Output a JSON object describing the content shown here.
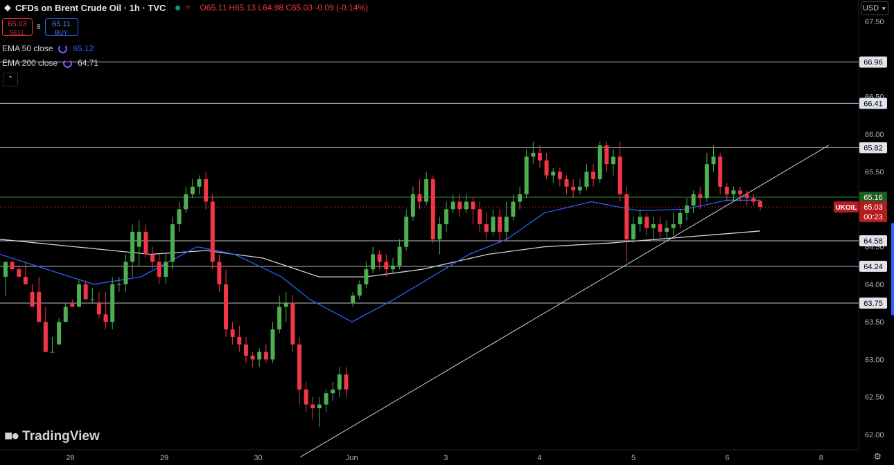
{
  "header": {
    "title": "CFDs on Brent Crude Oil · 1h · TVC",
    "ohlc": "O65.11 H65.13 L64.98 C65.03 -0.09 (-0.14%)"
  },
  "trade": {
    "sell_price": "65.03",
    "sell_label": "SELL",
    "spread": "8",
    "buy_price": "65.11",
    "buy_label": "BUY"
  },
  "indicators": [
    {
      "label": "EMA 50 close",
      "value": "65.12",
      "color": "#2962ff"
    },
    {
      "label": "EMA 200 close",
      "value": "64.71",
      "color": "#d1d4dc"
    }
  ],
  "currency": "USD",
  "brand": "TradingView",
  "symbol_tag": {
    "symbol": "UKOIL",
    "price": "65.03",
    "countdown": "00:23"
  },
  "colors": {
    "up": "#4caf50",
    "down": "#f23645",
    "ema50": "#2962ff",
    "ema200": "#d1d4dc",
    "level_green": "#4caf50"
  },
  "chart_data": {
    "type": "candlestick",
    "ylim": [
      61.9,
      67.6
    ],
    "y_ticks": [
      "62.00",
      "62.50",
      "63.00",
      "63.50",
      "64.00",
      "64.50",
      "65.00",
      "65.50",
      "66.00",
      "66.50",
      "67.00",
      "67.50"
    ],
    "x_ticks": [
      {
        "label": "28",
        "pos": 0.75
      },
      {
        "label": "29",
        "pos": 1.75
      },
      {
        "label": "30",
        "pos": 2.75
      },
      {
        "label": "Jun",
        "pos": 3.75
      },
      {
        "label": "3",
        "pos": 4.75
      },
      {
        "label": "4",
        "pos": 5.75
      },
      {
        "label": "5",
        "pos": 6.75
      },
      {
        "label": "6",
        "pos": 7.75
      },
      {
        "label": "8",
        "pos": 8.75
      }
    ],
    "x_range": [
      0,
      9.15
    ],
    "horizontal_levels": [
      {
        "value": 66.96,
        "label": "66.96",
        "color": "#d1d4dc"
      },
      {
        "value": 66.41,
        "label": "66.41",
        "color": "#d1d4dc"
      },
      {
        "value": 65.82,
        "label": "65.82",
        "color": "#d1d4dc"
      },
      {
        "value": 65.16,
        "label": "65.16",
        "color": "#4caf50"
      },
      {
        "value": 64.58,
        "label": "64.58",
        "color": "#d1d4dc"
      },
      {
        "value": 64.24,
        "label": "64.24",
        "color": "#d1d4dc"
      },
      {
        "value": 63.75,
        "label": "63.75",
        "color": "#d1d4dc"
      }
    ],
    "trendline": [
      [
        3.2,
        61.7
      ],
      [
        8.83,
        65.85
      ]
    ],
    "ema50_anchors": [
      [
        0,
        64.4
      ],
      [
        0.5,
        64.2
      ],
      [
        1.0,
        64.0
      ],
      [
        1.5,
        64.1
      ],
      [
        2.1,
        64.5
      ],
      [
        2.5,
        64.4
      ],
      [
        3.0,
        64.1
      ],
      [
        3.3,
        63.8
      ],
      [
        3.75,
        63.5
      ],
      [
        4.2,
        63.8
      ],
      [
        4.6,
        64.1
      ],
      [
        5.0,
        64.4
      ],
      [
        5.4,
        64.6
      ],
      [
        5.8,
        64.95
      ],
      [
        6.3,
        65.1
      ],
      [
        6.8,
        64.98
      ],
      [
        7.3,
        65.0
      ],
      [
        7.75,
        65.12
      ],
      [
        8.1,
        65.12
      ]
    ],
    "ema200_anchors": [
      [
        0,
        64.6
      ],
      [
        0.8,
        64.5
      ],
      [
        1.6,
        64.4
      ],
      [
        2.2,
        64.45
      ],
      [
        2.8,
        64.35
      ],
      [
        3.4,
        64.1
      ],
      [
        3.9,
        64.1
      ],
      [
        4.5,
        64.2
      ],
      [
        5.2,
        64.4
      ],
      [
        5.8,
        64.5
      ],
      [
        6.5,
        64.55
      ],
      [
        7.0,
        64.6
      ],
      [
        7.6,
        64.66
      ],
      [
        8.1,
        64.71
      ]
    ],
    "candles": [
      [
        64.1,
        64.3,
        63.95,
        63.85
      ],
      [
        64.3,
        64.2,
        64.15,
        64.2
      ],
      [
        64.2,
        64.1,
        64.25,
        64.25
      ],
      [
        64.1,
        64.0,
        64.3,
        64.0
      ],
      [
        63.9,
        63.7,
        64.0,
        63.95
      ],
      [
        63.9,
        63.5,
        64.1,
        63.95
      ],
      [
        63.5,
        63.1,
        63.7,
        63.1
      ],
      [
        63.1,
        63.1,
        63.3,
        63.3
      ],
      [
        63.2,
        63.5,
        63.55,
        63.3
      ],
      [
        63.5,
        63.7,
        63.75,
        63.65
      ],
      [
        63.75,
        63.7,
        63.8,
        63.7
      ],
      [
        63.7,
        64.0,
        64.05,
        63.85
      ],
      [
        64.0,
        63.8,
        64.05,
        63.8
      ],
      [
        63.8,
        63.8,
        63.95,
        63.75
      ],
      [
        63.75,
        63.6,
        63.9,
        63.55
      ],
      [
        63.6,
        63.5,
        63.9,
        63.4
      ],
      [
        63.5,
        64.0,
        64.1,
        63.4
      ],
      [
        64.0,
        64.0,
        64.1,
        63.9
      ],
      [
        64.0,
        64.3,
        64.4,
        63.9
      ],
      [
        64.3,
        64.7,
        64.8,
        64.1
      ],
      [
        64.5,
        64.7,
        64.85,
        64.25
      ],
      [
        64.7,
        64.4,
        64.8,
        64.35
      ],
      [
        64.4,
        64.3,
        64.5,
        64.2
      ],
      [
        64.3,
        64.1,
        64.4,
        64.0
      ],
      [
        64.1,
        64.3,
        64.4,
        64.0
      ],
      [
        64.3,
        64.8,
        64.9,
        64.2
      ],
      [
        64.8,
        65.0,
        65.1,
        64.7
      ],
      [
        65.0,
        65.2,
        65.3,
        64.95
      ],
      [
        65.2,
        65.3,
        65.4,
        65.15
      ],
      [
        65.3,
        65.4,
        65.45,
        65.2
      ],
      [
        65.4,
        65.1,
        65.5,
        65.0
      ],
      [
        65.1,
        64.3,
        65.2,
        64.2
      ],
      [
        64.3,
        64.0,
        64.4,
        63.9
      ],
      [
        64.0,
        63.4,
        64.2,
        63.3
      ],
      [
        63.4,
        63.3,
        63.5,
        63.2
      ],
      [
        63.3,
        63.2,
        63.45,
        63.1
      ],
      [
        63.2,
        63.05,
        63.3,
        62.95
      ],
      [
        63.05,
        63.0,
        63.1,
        62.9
      ],
      [
        63.0,
        63.1,
        63.15,
        62.9
      ],
      [
        63.1,
        63.0,
        63.2,
        62.95
      ],
      [
        63.0,
        63.4,
        63.5,
        62.95
      ],
      [
        63.4,
        63.7,
        63.85,
        63.35
      ],
      [
        63.7,
        63.75,
        63.9,
        63.5
      ],
      [
        63.75,
        63.2,
        63.85,
        63.1
      ],
      [
        63.2,
        62.6,
        63.3,
        62.4
      ],
      [
        62.6,
        62.4,
        62.7,
        62.3
      ],
      [
        62.4,
        62.35,
        62.5,
        62.2
      ],
      [
        62.35,
        62.4,
        62.5,
        62.1
      ],
      [
        62.4,
        62.55,
        62.6,
        62.3
      ],
      [
        62.55,
        62.6,
        62.7,
        62.45
      ],
      [
        62.6,
        62.8,
        62.9,
        62.5
      ],
      [
        62.8,
        62.6,
        62.9,
        62.5
      ],
      [
        63.75,
        63.85,
        63.9,
        63.7
      ],
      [
        63.85,
        64.0,
        64.05,
        63.8
      ],
      [
        64.0,
        64.2,
        64.3,
        63.95
      ],
      [
        64.2,
        64.4,
        64.5,
        64.15
      ],
      [
        64.4,
        64.3,
        64.45,
        64.2
      ],
      [
        64.3,
        64.2,
        64.4,
        64.1
      ],
      [
        64.2,
        64.25,
        64.35,
        64.15
      ],
      [
        64.25,
        64.5,
        64.6,
        64.2
      ],
      [
        64.5,
        64.9,
        65.0,
        64.45
      ],
      [
        64.9,
        65.2,
        65.3,
        64.85
      ],
      [
        65.2,
        65.1,
        65.4,
        65.0
      ],
      [
        65.1,
        65.4,
        65.5,
        65.05
      ],
      [
        65.4,
        64.6,
        65.45,
        64.55
      ],
      [
        64.6,
        64.8,
        64.9,
        64.4
      ],
      [
        64.8,
        65.0,
        65.1,
        64.7
      ],
      [
        65.0,
        65.1,
        65.2,
        64.95
      ],
      [
        65.1,
        65.0,
        65.2,
        64.9
      ],
      [
        65.0,
        65.1,
        65.2,
        64.95
      ],
      [
        65.1,
        65.0,
        65.15,
        64.8
      ],
      [
        65.0,
        64.8,
        65.1,
        64.7
      ],
      [
        64.8,
        64.7,
        64.95,
        64.6
      ],
      [
        64.7,
        64.9,
        65.0,
        64.65
      ],
      [
        64.9,
        64.7,
        65.0,
        64.55
      ],
      [
        64.7,
        64.9,
        65.1,
        64.6
      ],
      [
        64.9,
        65.1,
        65.2,
        64.85
      ],
      [
        65.1,
        65.2,
        65.3,
        65.0
      ],
      [
        65.2,
        65.7,
        65.8,
        65.15
      ],
      [
        65.7,
        65.75,
        65.9,
        65.6
      ],
      [
        65.75,
        65.65,
        65.85,
        65.55
      ],
      [
        65.65,
        65.45,
        65.75,
        65.4
      ],
      [
        65.45,
        65.5,
        65.55,
        65.35
      ],
      [
        65.5,
        65.4,
        65.55,
        65.3
      ],
      [
        65.4,
        65.3,
        65.45,
        65.2
      ],
      [
        65.3,
        65.25,
        65.4,
        65.15
      ],
      [
        65.25,
        65.3,
        65.4,
        65.2
      ],
      [
        65.3,
        65.5,
        65.6,
        65.25
      ],
      [
        65.5,
        65.4,
        65.6,
        65.3
      ],
      [
        65.4,
        65.85,
        65.9,
        65.35
      ],
      [
        65.85,
        65.6,
        65.9,
        65.5
      ],
      [
        65.6,
        65.7,
        65.8,
        65.45
      ],
      [
        65.7,
        65.2,
        65.9,
        65.1
      ],
      [
        65.2,
        64.6,
        65.3,
        64.3
      ],
      [
        64.6,
        64.8,
        64.9,
        64.55
      ],
      [
        64.8,
        64.9,
        65.0,
        64.7
      ],
      [
        64.9,
        64.75,
        64.95,
        64.65
      ],
      [
        64.75,
        64.8,
        64.9,
        64.6
      ],
      [
        64.8,
        64.7,
        64.9,
        64.6
      ],
      [
        64.7,
        64.75,
        64.85,
        64.6
      ],
      [
        64.75,
        64.8,
        64.95,
        64.65
      ],
      [
        64.8,
        64.95,
        65.0,
        64.75
      ],
      [
        64.95,
        65.05,
        65.15,
        64.85
      ],
      [
        65.05,
        65.2,
        65.25,
        64.95
      ],
      [
        65.2,
        65.15,
        65.3,
        65.0
      ],
      [
        65.15,
        65.6,
        65.75,
        65.1
      ],
      [
        65.6,
        65.7,
        65.85,
        65.5
      ],
      [
        65.7,
        65.3,
        65.75,
        65.2
      ],
      [
        65.3,
        65.2,
        65.35,
        65.1
      ],
      [
        65.2,
        65.25,
        65.3,
        65.1
      ],
      [
        65.25,
        65.2,
        65.3,
        65.1
      ],
      [
        65.2,
        65.15,
        65.25,
        65.05
      ],
      [
        65.15,
        65.1,
        65.2,
        65.05
      ],
      [
        65.11,
        65.03,
        65.13,
        64.98
      ]
    ]
  }
}
